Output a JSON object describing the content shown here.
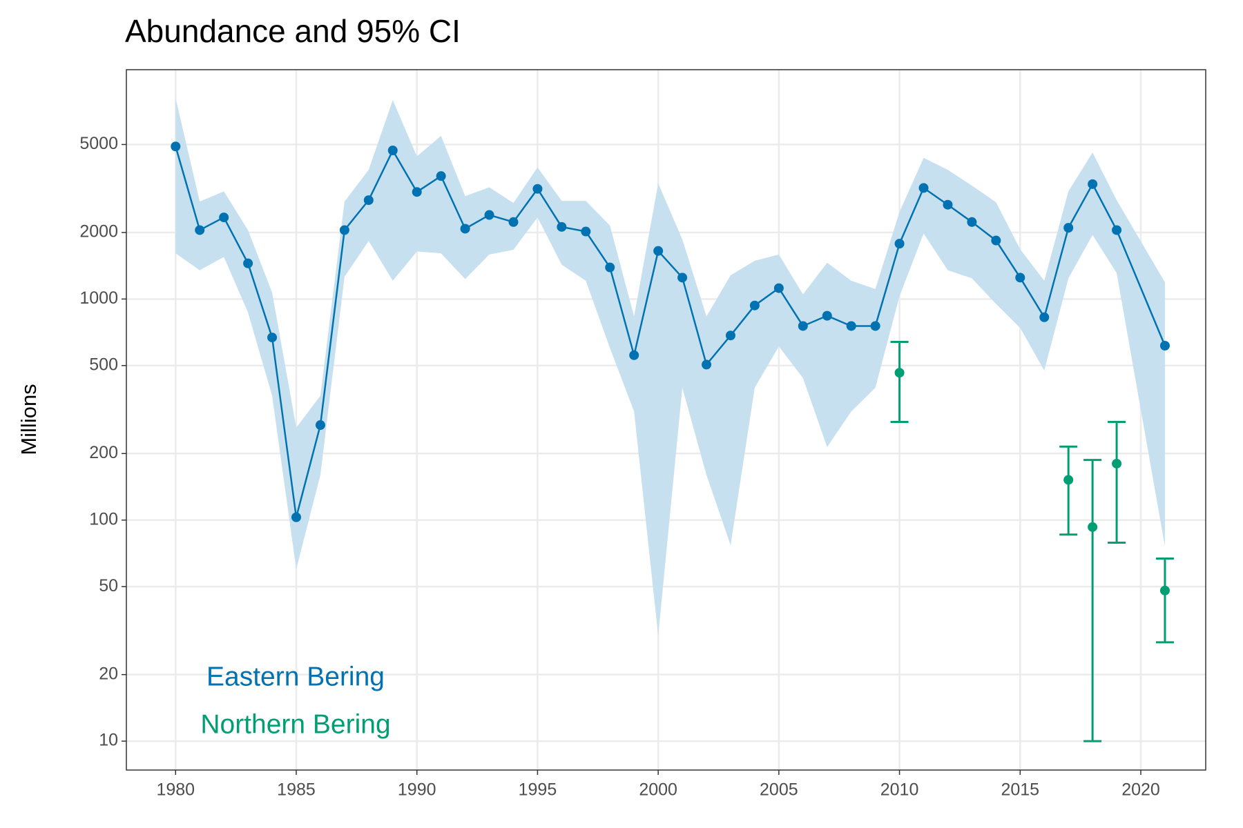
{
  "chart_data": {
    "type": "line",
    "title": "Abundance and 95% CI",
    "y_label": "Millions",
    "log_y": true,
    "grid": true,
    "xlim": [
      1977.96,
      2022.69
    ],
    "xticks": [
      1980,
      1985,
      1990,
      1995,
      2000,
      2005,
      2010,
      2015,
      2020
    ],
    "ylim": [
      7.4,
      10900
    ],
    "yticks": [
      10,
      20,
      50,
      100,
      200,
      500,
      1000,
      2000,
      5000
    ],
    "series": [
      {
        "name": "Eastern Bering",
        "color": "#0072B2",
        "ci_fill": "#c6e0ef",
        "ci": "ribbon",
        "x": [
          1980,
          1981,
          1982,
          1983,
          1984,
          1985,
          1986,
          1987,
          1988,
          1989,
          1990,
          1991,
          1992,
          1993,
          1994,
          1995,
          1996,
          1997,
          1998,
          1999,
          2000,
          2001,
          2002,
          2003,
          2004,
          2005,
          2006,
          2007,
          2008,
          2009,
          2010,
          2011,
          2012,
          2013,
          2014,
          2015,
          2016,
          2017,
          2018,
          2019,
          2021
        ],
        "values": [
          4900,
          2050,
          2340,
          1450,
          670,
          103,
          269,
          2050,
          2800,
          4700,
          3050,
          3600,
          2080,
          2400,
          2230,
          3150,
          2120,
          2020,
          1390,
          557,
          1650,
          1250,
          505,
          684,
          935,
          1120,
          755,
          840,
          755,
          755,
          1780,
          3180,
          2670,
          2230,
          1840,
          1250,
          827,
          2100,
          3310,
          2050,
          615
        ],
        "lower": [
          1610,
          1350,
          1550,
          869,
          365,
          60,
          160,
          1260,
          1830,
          1210,
          1640,
          1610,
          1230,
          1590,
          1670,
          2340,
          1430,
          1210,
          600,
          310,
          30,
          397,
          160,
          77,
          397,
          610,
          439,
          214,
          310,
          397,
          1030,
          1980,
          1350,
          1240,
          950,
          740,
          475,
          1240,
          1950,
          1310,
          76
        ],
        "upper": [
          8100,
          2760,
          3070,
          2050,
          1070,
          262,
          365,
          2760,
          3840,
          7940,
          4420,
          5470,
          2920,
          3200,
          2720,
          3940,
          2780,
          2780,
          2150,
          834,
          3340,
          1860,
          834,
          1280,
          1490,
          1590,
          1050,
          1460,
          1210,
          1110,
          2480,
          4350,
          3840,
          3260,
          2740,
          1680,
          1210,
          3070,
          4600,
          2800,
          1190
        ]
      },
      {
        "name": "Northern Bering",
        "color": "#009E73",
        "ci": "errorbar",
        "x": [
          2010,
          2017,
          2018,
          2019,
          2021
        ],
        "values": [
          464,
          152,
          93,
          180,
          48
        ],
        "lower": [
          278,
          86,
          10,
          79,
          28
        ],
        "upper": [
          640,
          215,
          187,
          278,
          67
        ]
      }
    ]
  }
}
